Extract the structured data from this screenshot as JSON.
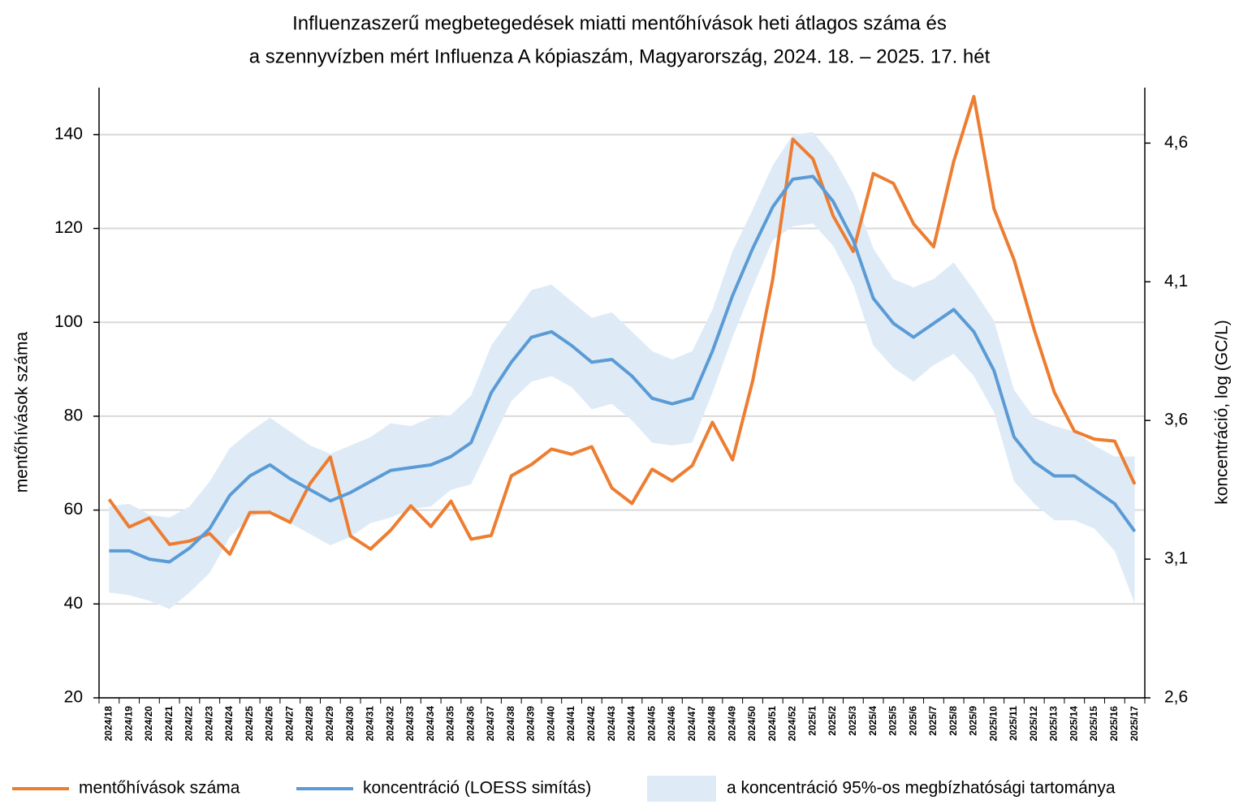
{
  "chart_data": {
    "type": "line",
    "title": [
      "Influenzaszerű megbetegedések miatti mentőhívások heti átlagos száma és",
      "a szennyvízben mért Influenza A kópiaszám, Magyarország, 2024. 18. – 2025. 17. hét"
    ],
    "ylabel": "mentőhívások száma",
    "y2label": "koncentráció, log (GC/L)",
    "categories": [
      "2024/18",
      "2024/19",
      "2024/20",
      "2024/21",
      "2024/22",
      "2024/23",
      "2024/24",
      "2024/25",
      "2024/26",
      "2024/27",
      "2024/28",
      "2024/29",
      "2024/30",
      "2024/31",
      "2024/32",
      "2024/33",
      "2024/34",
      "2024/35",
      "2024/36",
      "2024/37",
      "2024/38",
      "2024/39",
      "2024/40",
      "2024/41",
      "2024/42",
      "2024/43",
      "2024/44",
      "2024/45",
      "2024/46",
      "2024/47",
      "2024/48",
      "2024/49",
      "2024/50",
      "2024/51",
      "2024/52",
      "2025/1",
      "2025/2",
      "2025/3",
      "2025/4",
      "2025/5",
      "2025/6",
      "2025/7",
      "2025/8",
      "2025/9",
      "2025/10",
      "2025/11",
      "2025/12",
      "2025/13",
      "2025/14",
      "2025/15",
      "2025/16",
      "2025/17"
    ],
    "ylim": [
      20,
      150
    ],
    "yticks": [
      20,
      40,
      60,
      80,
      100,
      120,
      140
    ],
    "y2lim": [
      2.6,
      4.8
    ],
    "y2ticks": [
      {
        "value": 2.6,
        "label": "2,6"
      },
      {
        "value": 3.1,
        "label": "3,1"
      },
      {
        "value": 3.6,
        "label": "3,6"
      },
      {
        "value": 4.1,
        "label": "4,1"
      },
      {
        "value": 4.6,
        "label": "4,6"
      }
    ],
    "grid": true,
    "series": [
      {
        "name": "mentőhívások száma",
        "color": "#ed7d31",
        "values": [
          62.3,
          56.4,
          58.3,
          52.7,
          53.4,
          55.0,
          50.6,
          59.5,
          59.5,
          57.4,
          65.7,
          71.3,
          54.5,
          51.7,
          55.7,
          60.9,
          56.5,
          61.9,
          53.8,
          54.6,
          67.3,
          69.7,
          73.0,
          71.9,
          73.5,
          64.7,
          61.4,
          68.7,
          66.2,
          69.5,
          78.7,
          70.7,
          87.5,
          109.2,
          139.0,
          134.8,
          122.7,
          115.1,
          131.7,
          129.6,
          121.0,
          116.1,
          134.3,
          148.1,
          124.2,
          113.3,
          98.4,
          85.1,
          76.8,
          75.1,
          74.7,
          65.5
        ]
      },
      {
        "name": "koncentráció (LOESS simítás)",
        "color": "#5b9bd5",
        "axis": "y2",
        "values": [
          3.13,
          3.13,
          3.1,
          3.09,
          3.14,
          3.21,
          3.33,
          3.4,
          3.44,
          3.39,
          3.35,
          3.31,
          3.34,
          3.38,
          3.42,
          3.43,
          3.44,
          3.47,
          3.52,
          3.7,
          3.81,
          3.9,
          3.92,
          3.87,
          3.81,
          3.82,
          3.76,
          3.68,
          3.66,
          3.68,
          3.85,
          4.05,
          4.22,
          4.37,
          4.47,
          4.48,
          4.39,
          4.25,
          4.04,
          3.95,
          3.9,
          3.95,
          4.0,
          3.92,
          3.78,
          3.54,
          3.45,
          3.4,
          3.4,
          3.35,
          3.3,
          3.2
        ]
      },
      {
        "name": "a koncentráció 95%-os megbízhatósági tartománya",
        "color": "#deebf7",
        "axis": "y2",
        "upper": [
          3.29,
          3.3,
          3.26,
          3.25,
          3.29,
          3.38,
          3.5,
          3.56,
          3.61,
          3.56,
          3.51,
          3.48,
          3.51,
          3.54,
          3.59,
          3.58,
          3.61,
          3.62,
          3.69,
          3.87,
          3.97,
          4.07,
          4.09,
          4.03,
          3.97,
          3.99,
          3.92,
          3.85,
          3.82,
          3.85,
          4.0,
          4.21,
          4.36,
          4.52,
          4.63,
          4.64,
          4.55,
          4.42,
          4.22,
          4.11,
          4.08,
          4.11,
          4.17,
          4.07,
          3.96,
          3.71,
          3.61,
          3.58,
          3.56,
          3.51,
          3.47,
          3.47
        ],
        "lower": [
          2.98,
          2.97,
          2.95,
          2.92,
          2.98,
          3.05,
          3.18,
          3.25,
          3.28,
          3.23,
          3.19,
          3.15,
          3.18,
          3.23,
          3.25,
          3.28,
          3.29,
          3.35,
          3.37,
          3.52,
          3.67,
          3.74,
          3.76,
          3.72,
          3.64,
          3.66,
          3.6,
          3.52,
          3.51,
          3.52,
          3.7,
          3.9,
          4.08,
          4.25,
          4.3,
          4.31,
          4.23,
          4.09,
          3.87,
          3.79,
          3.74,
          3.8,
          3.84,
          3.76,
          3.63,
          3.38,
          3.3,
          3.24,
          3.24,
          3.21,
          3.13,
          2.94
        ]
      }
    ]
  }
}
